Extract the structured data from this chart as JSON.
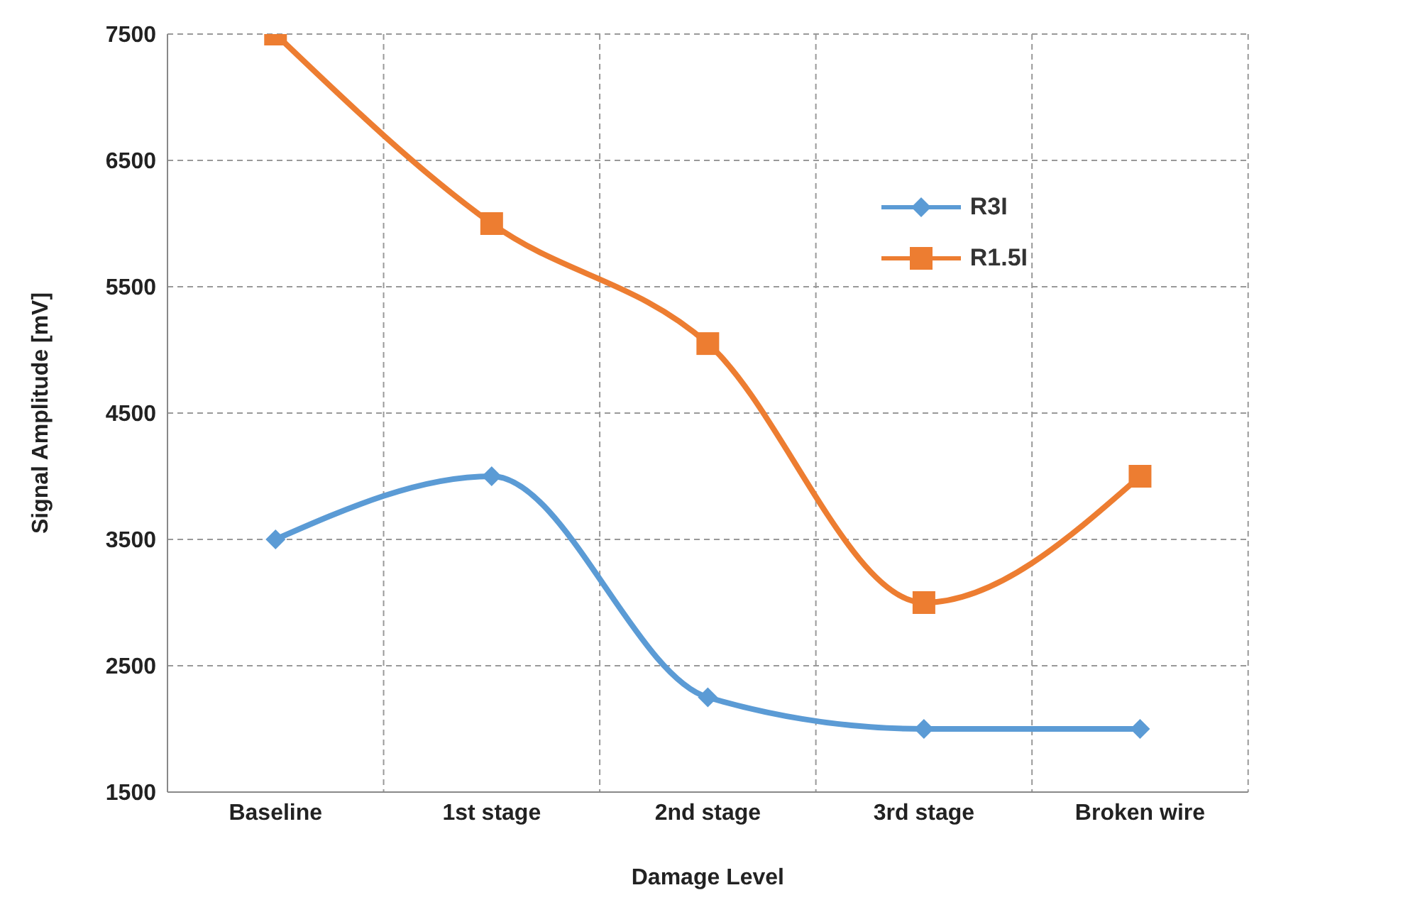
{
  "chart_data": {
    "type": "line",
    "xlabel": "Damage Level",
    "ylabel": "Signal Amplitude [mV]",
    "categories": [
      "Baseline",
      "1st stage",
      "2nd stage",
      "3rd stage",
      "Broken wire"
    ],
    "series": [
      {
        "name": "R3I",
        "color": "#5b9bd5",
        "marker": "diamond",
        "values": [
          3500,
          4000,
          2250,
          2000,
          2000
        ]
      },
      {
        "name": "R1.5I",
        "color": "#ed7d31",
        "marker": "square",
        "values": [
          7500,
          6000,
          5050,
          3000,
          4000
        ]
      }
    ],
    "ylim": [
      1500,
      7500
    ],
    "yticks": [
      1500,
      2500,
      3500,
      4500,
      5500,
      6500,
      7500
    ],
    "grid": true,
    "legend": "top right"
  }
}
